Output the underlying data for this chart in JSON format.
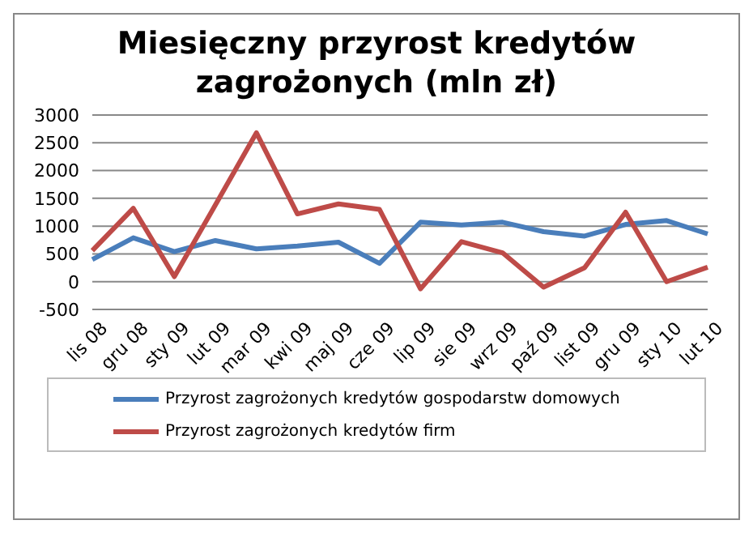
{
  "chart_data": {
    "type": "line",
    "title": "Miesięczny przyrost kredytów zagrożonych (mln zł)",
    "categories": [
      "lis 08",
      "gru 08",
      "sty 09",
      "lut 09",
      "mar 09",
      "kwi 09",
      "maj 09",
      "cze 09",
      "lip 09",
      "sie 09",
      "wrz 09",
      "paź 09",
      "list 09",
      "gru 09",
      "sty 10",
      "lut 10"
    ],
    "series": [
      {
        "name": "Przyrost zagrożonych kredytów gospodarstw domowych",
        "color": "#4a7ebb",
        "values": [
          400,
          790,
          540,
          740,
          590,
          640,
          710,
          330,
          1070,
          1020,
          1070,
          900,
          820,
          1030,
          1100,
          860
        ]
      },
      {
        "name": "Przyrost zagrożonych kredytów firm",
        "color": "#be4b48",
        "values": [
          560,
          1320,
          90,
          1380,
          2680,
          1220,
          1400,
          1300,
          -130,
          720,
          520,
          -100,
          250,
          1250,
          0,
          260
        ]
      }
    ],
    "ylim": [
      -500,
      3000
    ],
    "yticks": [
      -500,
      0,
      500,
      1000,
      1500,
      2000,
      2500,
      3000
    ],
    "grid": "y",
    "legend": "bottom",
    "marker": "none",
    "line_style": "solid"
  }
}
